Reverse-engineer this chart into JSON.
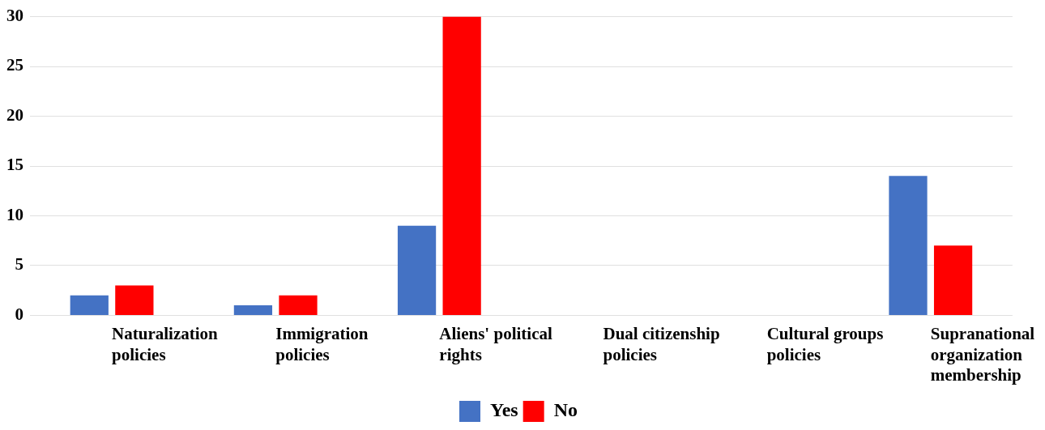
{
  "chart_data": {
    "type": "bar",
    "categories": [
      "Naturalization policies",
      "Immigration policies",
      "Aliens' political rights",
      "Dual citizenship policies",
      "Cultural groups policies",
      "Supranational organization membership"
    ],
    "series": [
      {
        "name": "Yes",
        "color": "#4472c4",
        "values": [
          2,
          1,
          9,
          0,
          0,
          14
        ]
      },
      {
        "name": "No",
        "color": "#ff0000",
        "values": [
          3,
          2,
          30,
          0,
          0,
          7
        ]
      }
    ],
    "ylim": [
      0,
      30
    ],
    "yticks": [
      0,
      5,
      10,
      15,
      20,
      25,
      30
    ],
    "grid": "y",
    "legend": "bottom"
  }
}
